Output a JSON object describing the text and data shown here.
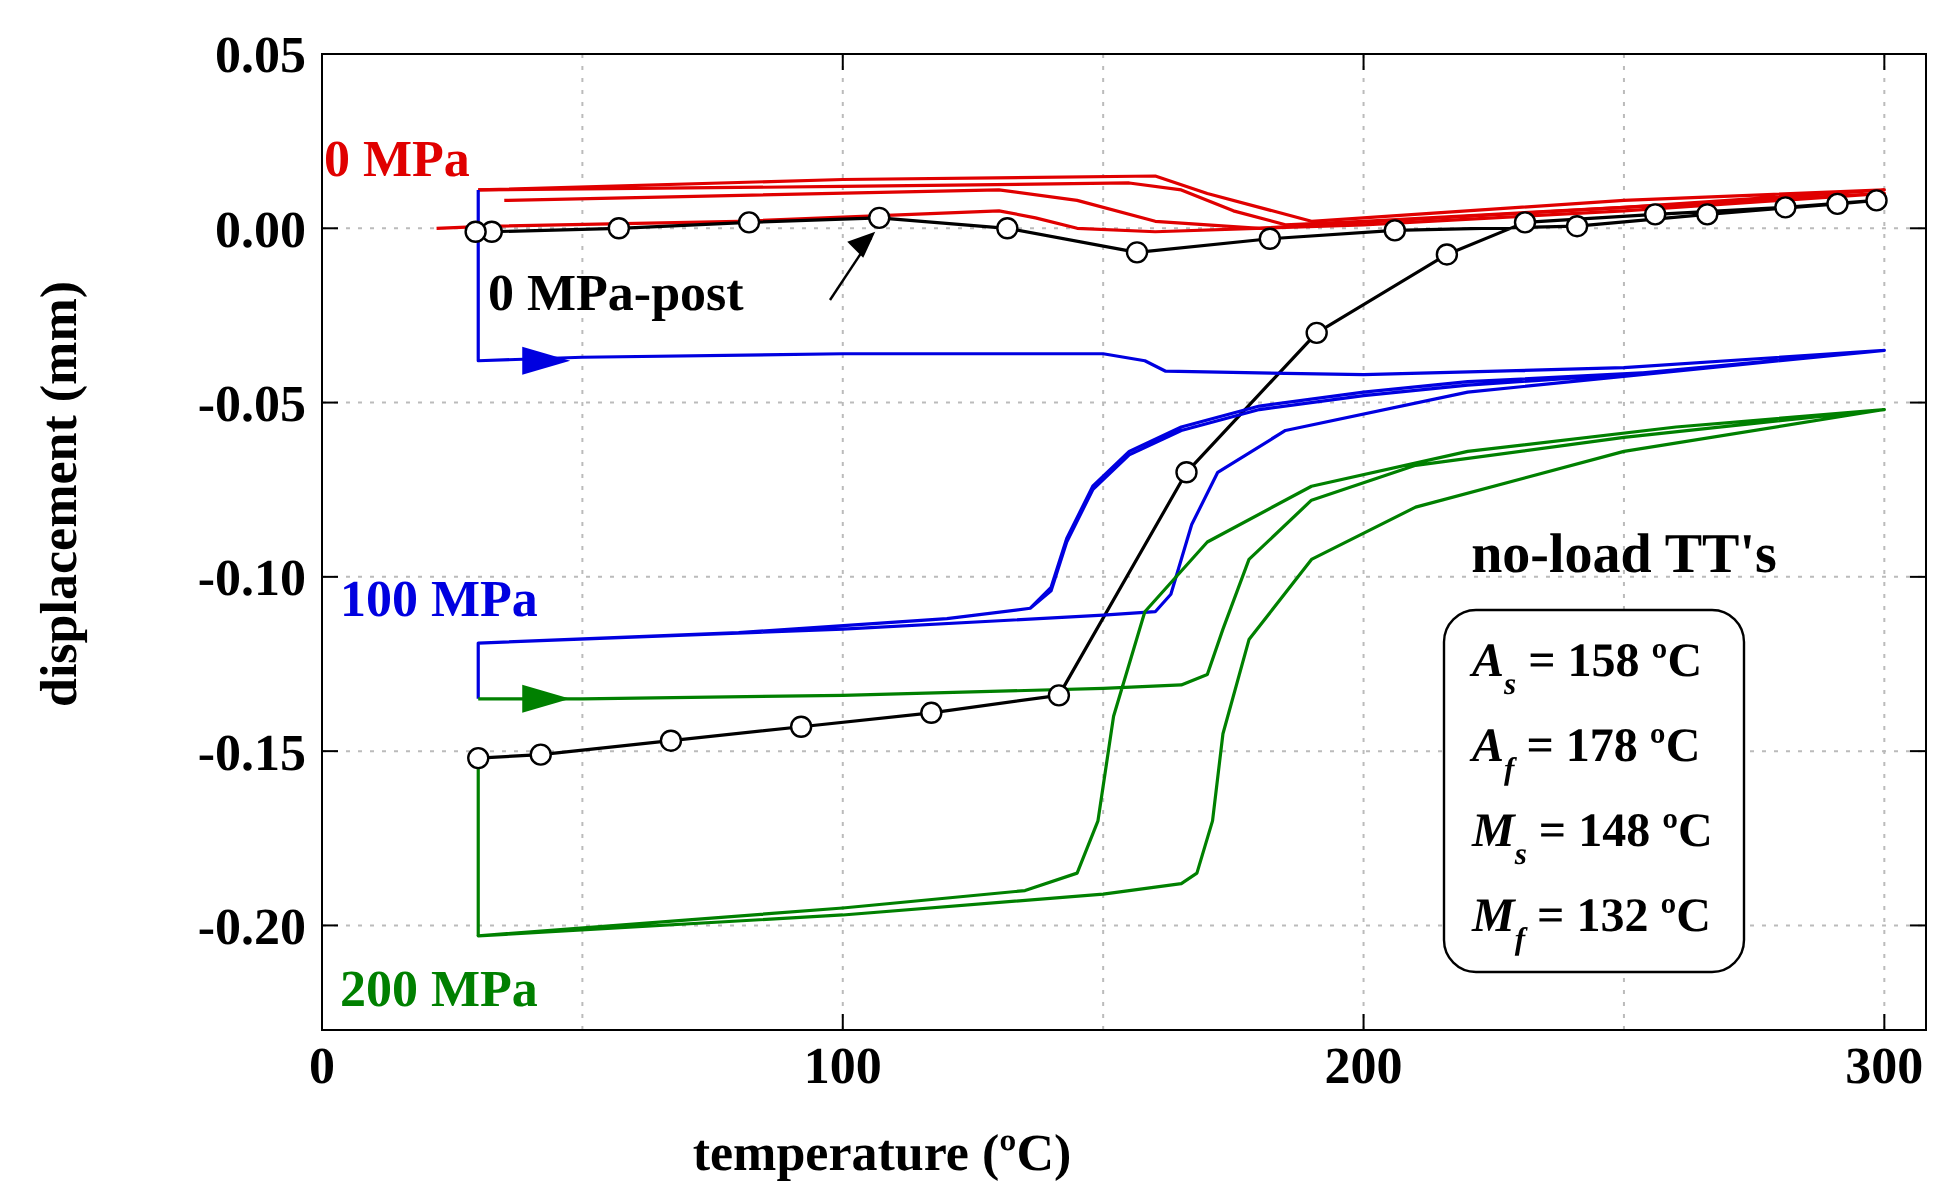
{
  "chart_data": {
    "type": "line",
    "xlabel": "temperature (ºC)",
    "ylabel": "displacement (mm)",
    "xlim": [
      0,
      308
    ],
    "ylim": [
      -0.23,
      0.05
    ],
    "xticks": [
      0,
      {
        "value": 50,
        "label": null
      },
      100,
      {
        "value": 150,
        "label": null
      },
      200,
      {
        "value": 250,
        "label": null
      },
      300
    ],
    "yticks": [
      {
        "value": -0.2,
        "label": "-0.20"
      },
      {
        "value": -0.15,
        "label": "-0.15"
      },
      {
        "value": -0.1,
        "label": "-0.10"
      },
      {
        "value": -0.05,
        "label": "-0.05"
      },
      {
        "value": 0,
        "label": "0.00"
      },
      {
        "value": 0.05,
        "label": "0.05"
      }
    ],
    "grid": true,
    "marker": "none",
    "line_style": "solid",
    "annotations": [
      {
        "text": "0 MPa-post",
        "x": 107,
        "y": 0.003
      },
      "no-load TT's",
      "A$_{s}$ = 158 ºC",
      "A$_{f}$ = 178 ºC",
      "M$_{s}$ = 148 ºC",
      "M$_{f}$ = 132 ºC"
    ],
    "series": [
      {
        "name": "0 MPa",
        "color": "#e00000",
        "x": [
          22,
          30,
          80,
          130,
          137,
          145,
          160,
          200,
          250,
          300,
          250,
          200,
          185,
          175,
          165,
          155,
          100,
          30
        ],
        "values": [
          0,
          0.0005,
          0.002,
          0.005,
          0.003,
          0,
          -0.001,
          0.001,
          0.005,
          0.01,
          0.006,
          0.002,
          0.001,
          0.005,
          0.011,
          0.013,
          0.012,
          0.011
        ]
      },
      {
        "color": "#e00000",
        "x": [
          35,
          130,
          145,
          160,
          180,
          250,
          300,
          250,
          190,
          170,
          160,
          100,
          30
        ],
        "values": [
          0.008,
          0.011,
          0.008,
          0.002,
          0,
          0.006,
          0.011,
          0.008,
          0.002,
          0.01,
          0.015,
          0.014,
          0.011
        ]
      },
      {
        "color": "#000000",
        "marker": "circle",
        "x": [
          30,
          42,
          67,
          92,
          117,
          141.5,
          166,
          191,
          216,
          231,
          256,
          281,
          298.5,
          291,
          266,
          241,
          206,
          182,
          156.5,
          131.6,
          107,
          82,
          57,
          32.6,
          29.5
        ],
        "values": [
          -0.152,
          -0.151,
          -0.147,
          -0.143,
          -0.139,
          -0.134,
          -0.07,
          -0.03,
          -0.0075,
          0.0017,
          0.004,
          0.006,
          0.008,
          0.007,
          0.004,
          0.0006,
          -0.0006,
          -0.003,
          -0.0069,
          0,
          0.003,
          0.0017,
          0,
          -0.001,
          -0.001
        ]
      },
      {
        "name": "100 MPa",
        "color": "#0000e0",
        "x": [
          30,
          30,
          50,
          100,
          150,
          158,
          162,
          200,
          250,
          300,
          250,
          220,
          200,
          180,
          165,
          155,
          148,
          143,
          140,
          136,
          120,
          80,
          30,
          100,
          150,
          160,
          163,
          167,
          172,
          185,
          220,
          260,
          300,
          260,
          220,
          200,
          180,
          165,
          155,
          148,
          143,
          140,
          136,
          120,
          80,
          30,
          30
        ],
        "values": [
          0.011,
          -0.038,
          -0.037,
          -0.036,
          -0.036,
          -0.038,
          -0.041,
          -0.042,
          -0.04,
          -0.035,
          -0.042,
          -0.045,
          -0.048,
          -0.052,
          -0.058,
          -0.065,
          -0.075,
          -0.09,
          -0.104,
          -0.109,
          -0.112,
          -0.116,
          -0.119,
          -0.115,
          -0.111,
          -0.11,
          -0.105,
          -0.085,
          -0.07,
          -0.058,
          -0.047,
          -0.041,
          -0.035,
          -0.041,
          -0.044,
          -0.047,
          -0.051,
          -0.057,
          -0.064,
          -0.074,
          -0.089,
          -0.103,
          -0.109,
          -0.112,
          -0.116,
          -0.119,
          -0.135
        ]
      },
      {
        "name": "200 MPa",
        "color": "#008000",
        "x": [
          30,
          50,
          100,
          150,
          165,
          170,
          173,
          178,
          190,
          210,
          250,
          300,
          260,
          220,
          190,
          170,
          158,
          152,
          149,
          145,
          135,
          100,
          30,
          100,
          150,
          165,
          168,
          171,
          173,
          178,
          190,
          210,
          250,
          300
        ],
        "values": [
          -0.135,
          -0.135,
          -0.134,
          -0.132,
          -0.131,
          -0.128,
          -0.115,
          -0.095,
          -0.078,
          -0.068,
          -0.06,
          -0.052,
          -0.057,
          -0.064,
          -0.074,
          -0.09,
          -0.11,
          -0.14,
          -0.17,
          -0.185,
          -0.19,
          -0.195,
          -0.203,
          -0.197,
          -0.191,
          -0.188,
          -0.185,
          -0.17,
          -0.145,
          -0.118,
          -0.095,
          -0.08,
          -0.064,
          -0.052
        ]
      },
      {
        "color": "#008000",
        "x": [
          30,
          30
        ],
        "values": [
          -0.152,
          -0.203
        ]
      }
    ]
  }
}
